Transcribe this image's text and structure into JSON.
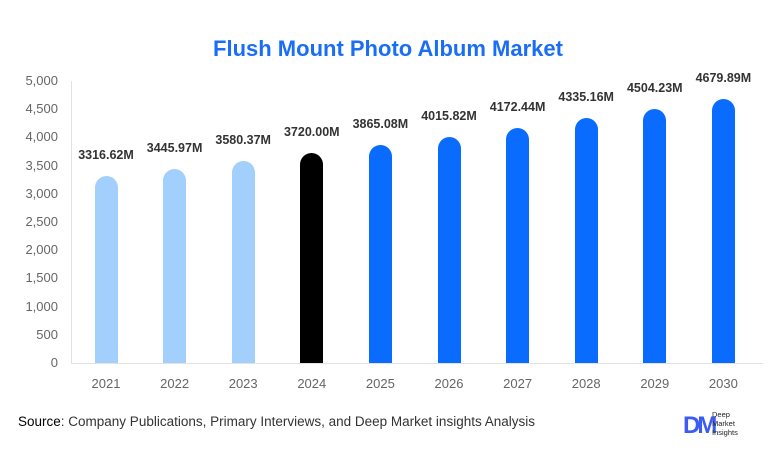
{
  "chart_data": {
    "type": "bar",
    "title": "Flush Mount Photo Album Market",
    "xlabel": "",
    "ylabel": "",
    "ylim": [
      0,
      5000
    ],
    "yticks": [
      "0",
      "500",
      "1,000",
      "1,500",
      "2,000",
      "2,500",
      "3,000",
      "3,500",
      "4,000",
      "4,500",
      "5,000"
    ],
    "categories": [
      "2021",
      "2022",
      "2023",
      "2024",
      "2025",
      "2026",
      "2027",
      "2028",
      "2029",
      "2030"
    ],
    "values": [
      3316.62,
      3445.97,
      3580.37,
      3720.0,
      3865.08,
      4015.82,
      4172.44,
      4335.16,
      4504.23,
      4679.89
    ],
    "value_labels": [
      "3316.62M",
      "3445.97M",
      "3580.37M",
      "3720.00M",
      "3865.08M",
      "4015.82M",
      "4172.44M",
      "4335.16M",
      "4504.23M",
      "4679.89M"
    ],
    "bar_colors": [
      "#a3cffd",
      "#a3cffd",
      "#a3cffd",
      "#000000",
      "#0a6cff",
      "#0a6cff",
      "#0a6cff",
      "#0a6cff",
      "#0a6cff",
      "#0a6cff"
    ],
    "grid": false,
    "legend": "none"
  },
  "colors": {
    "title": "#1a6ef5",
    "historical": "#a3cffd",
    "base_year": "#000000",
    "forecast": "#0a6cff"
  },
  "footer": {
    "source_label": "Source",
    "source_text": ": Company Publications, Primary Interviews, and Deep Market insights Analysis",
    "logo_mark": "DM",
    "logo_line1": "Deep",
    "logo_line2": "Market",
    "logo_line3": "Insights"
  }
}
